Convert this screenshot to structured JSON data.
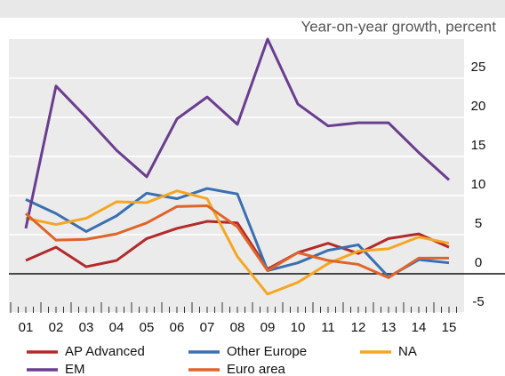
{
  "chart_data": {
    "type": "line",
    "subtitle": "Year-on-year growth, percent",
    "categories": [
      "01",
      "02",
      "03",
      "04",
      "05",
      "06",
      "07",
      "08",
      "09",
      "10",
      "11",
      "12",
      "13",
      "14",
      "15"
    ],
    "series": [
      {
        "name": "AP Advanced",
        "color": "#b22a2a",
        "values": [
          1.7,
          3.4,
          0.9,
          1.7,
          4.5,
          5.8,
          6.7,
          6.5,
          0.6,
          2.7,
          3.9,
          2.6,
          4.5,
          5.1,
          3.4
        ]
      },
      {
        "name": "Other Europe",
        "color": "#3a6fb0",
        "values": [
          9.5,
          7.7,
          5.4,
          7.4,
          10.3,
          9.6,
          10.9,
          10.2,
          0.4,
          1.4,
          3.0,
          3.7,
          -0.4,
          1.8,
          1.4
        ]
      },
      {
        "name": "NA",
        "color": "#f5a623",
        "values": [
          7.1,
          6.3,
          7.1,
          9.2,
          9.1,
          10.6,
          9.6,
          2.2,
          -2.6,
          -1.1,
          1.3,
          2.9,
          3.2,
          4.7,
          3.9
        ]
      },
      {
        "name": "EM",
        "color": "#6a3d8f",
        "values": [
          5.8,
          24,
          20,
          15.8,
          12.4,
          19.8,
          22.6,
          19.1,
          30,
          21.7,
          18.9,
          19.3,
          19.3,
          15.5,
          12
        ]
      },
      {
        "name": "Euro area",
        "color": "#e0642a",
        "values": [
          7.7,
          4.3,
          4.4,
          5.1,
          6.5,
          8.6,
          8.7,
          6.0,
          0.4,
          2.7,
          1.7,
          1.2,
          -0.5,
          2.0,
          2.0
        ]
      }
    ],
    "ylim": [
      -5,
      30
    ],
    "yticks": [
      -5,
      0,
      5,
      10,
      15,
      20,
      25
    ],
    "grid": true
  }
}
